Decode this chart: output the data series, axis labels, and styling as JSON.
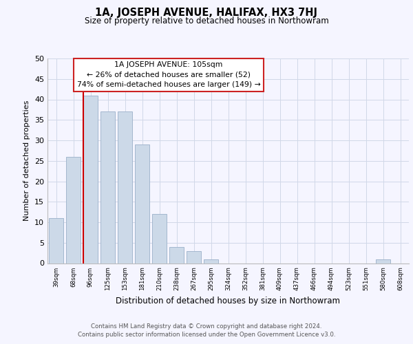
{
  "title": "1A, JOSEPH AVENUE, HALIFAX, HX3 7HJ",
  "subtitle": "Size of property relative to detached houses in Northowram",
  "xlabel": "Distribution of detached houses by size in Northowram",
  "ylabel": "Number of detached properties",
  "bar_labels": [
    "39sqm",
    "68sqm",
    "96sqm",
    "125sqm",
    "153sqm",
    "181sqm",
    "210sqm",
    "238sqm",
    "267sqm",
    "295sqm",
    "324sqm",
    "352sqm",
    "381sqm",
    "409sqm",
    "437sqm",
    "466sqm",
    "494sqm",
    "523sqm",
    "551sqm",
    "580sqm",
    "608sqm"
  ],
  "bar_values": [
    11,
    26,
    41,
    37,
    37,
    29,
    12,
    4,
    3,
    1,
    0,
    0,
    0,
    0,
    0,
    0,
    0,
    0,
    0,
    1,
    0
  ],
  "bar_color": "#ccd9e8",
  "bar_edge_color": "#9ab0c8",
  "vline_color": "#cc0000",
  "annotation_title": "1A JOSEPH AVENUE: 105sqm",
  "annotation_line1": "← 26% of detached houses are smaller (52)",
  "annotation_line2": "74% of semi-detached houses are larger (149) →",
  "ylim": [
    0,
    50
  ],
  "yticks": [
    0,
    5,
    10,
    15,
    20,
    25,
    30,
    35,
    40,
    45,
    50
  ],
  "footer_line1": "Contains HM Land Registry data © Crown copyright and database right 2024.",
  "footer_line2": "Contains public sector information licensed under the Open Government Licence v3.0.",
  "bg_color": "#f5f5ff",
  "grid_color": "#d0d8e8"
}
